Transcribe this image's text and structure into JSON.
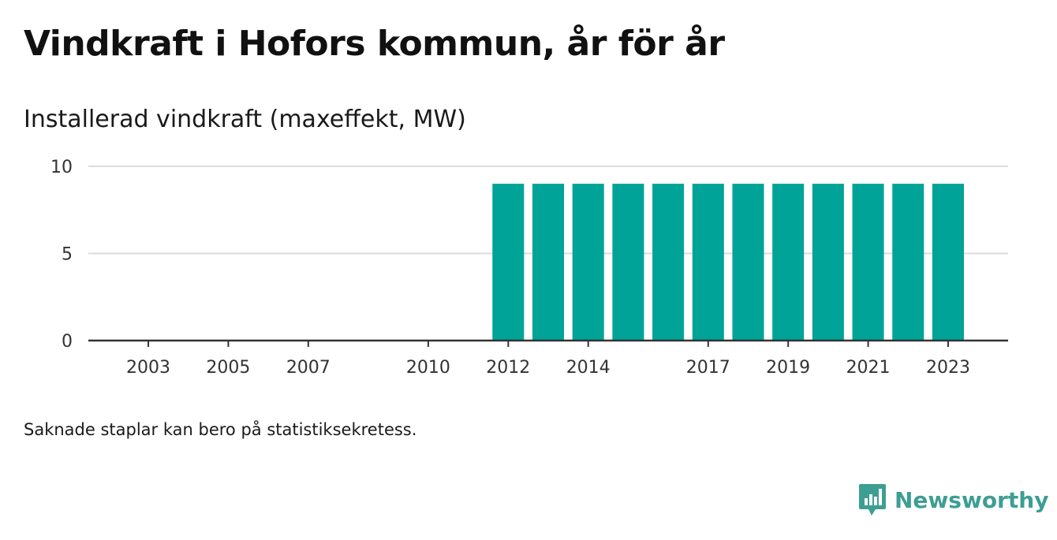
{
  "title": "Vindkraft i Hofors kommun, år för år",
  "subtitle": "Installerad vindkraft (maxeffekt, MW)",
  "footnote": "Saknade staplar kan bero på statistiksekretess.",
  "brand": {
    "name": "Newsworthy",
    "icon": "newsworthy-logo-icon",
    "color": "#3d9e93"
  },
  "chart_data": {
    "type": "bar",
    "x": [
      2012,
      2013,
      2014,
      2015,
      2016,
      2017,
      2018,
      2019,
      2020,
      2021,
      2022,
      2023
    ],
    "values": [
      9,
      9,
      9,
      9,
      9,
      9,
      9,
      9,
      9,
      9,
      9,
      9
    ],
    "x_ticks": [
      2003,
      2005,
      2007,
      2010,
      2012,
      2014,
      2017,
      2019,
      2021,
      2023
    ],
    "xlim": [
      2001.5,
      2024.5
    ],
    "y_ticks": [
      0,
      5,
      10
    ],
    "ylim": [
      0,
      10
    ],
    "grid": true,
    "bar_color": "#00a398",
    "title": "Vindkraft i Hofors kommun, år för år",
    "xlabel": "",
    "ylabel": "Installerad vindkraft (maxeffekt, MW)"
  }
}
